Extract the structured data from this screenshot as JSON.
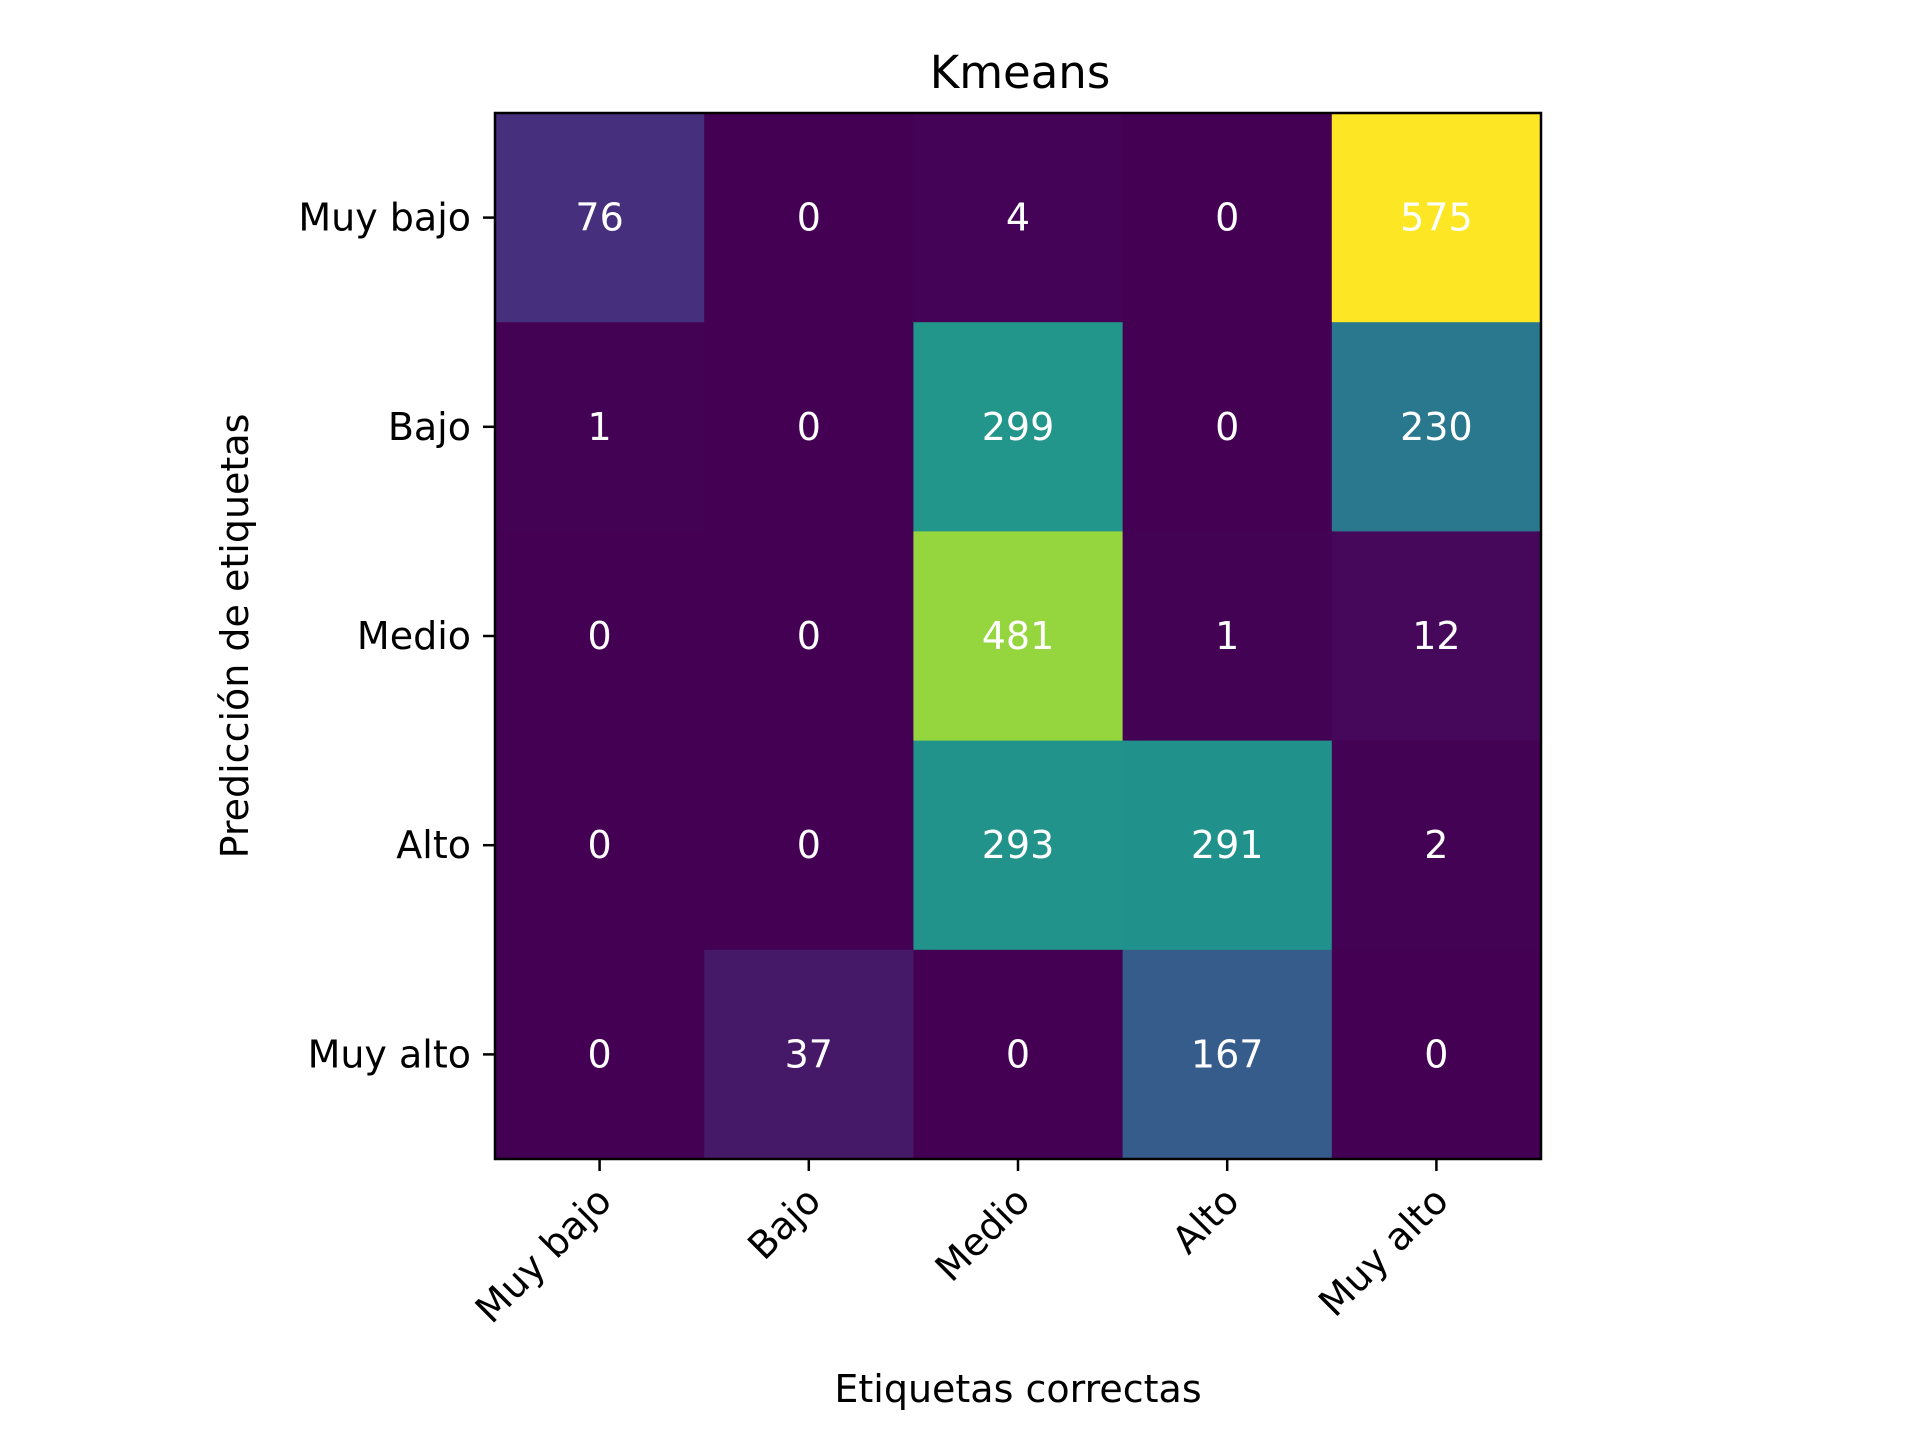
{
  "chart_data": {
    "type": "heatmap",
    "title": "Kmeans",
    "xlabel": "Etiquetas correctas",
    "ylabel": "Predicción de etiquetas",
    "x_categories": [
      "Muy bajo",
      "Bajo",
      "Medio",
      "Alto",
      "Muy alto"
    ],
    "y_categories": [
      "Muy bajo",
      "Bajo",
      "Medio",
      "Alto",
      "Muy alto"
    ],
    "values": [
      [
        76,
        0,
        4,
        0,
        575
      ],
      [
        1,
        0,
        299,
        0,
        230
      ],
      [
        0,
        0,
        481,
        1,
        12
      ],
      [
        0,
        0,
        293,
        291,
        2
      ],
      [
        0,
        37,
        0,
        167,
        0
      ]
    ],
    "colormap": "viridis",
    "vmin": 0,
    "vmax": 575,
    "annotation_colors": {
      "light": "#ffffff",
      "dark": "#000000"
    },
    "colorbar": false,
    "grid": false
  }
}
